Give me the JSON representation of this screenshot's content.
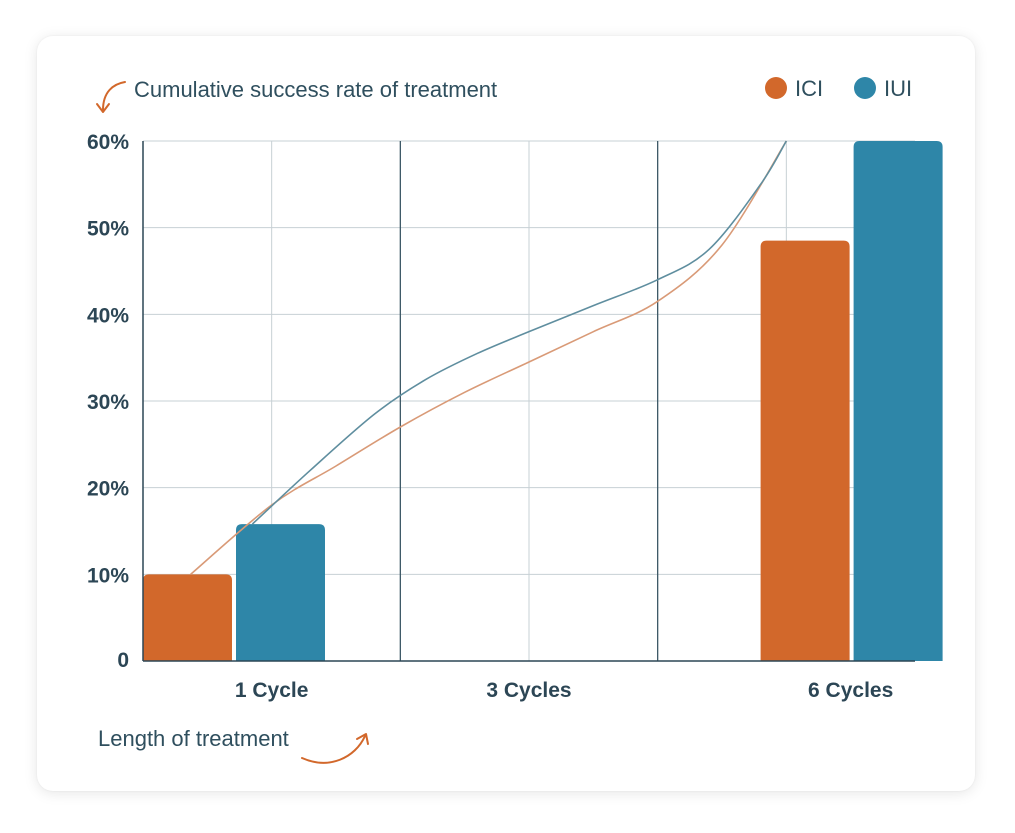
{
  "chart_data": {
    "type": "bar",
    "ylabel": "Cumulative success rate of treatment",
    "xlabel": "Length of treatment",
    "categories": [
      "1 Cycle",
      "3 Cycles",
      "6 Cycles"
    ],
    "series": [
      {
        "name": "ICI",
        "color": "#d2682b",
        "values": [
          10,
          null,
          48.5
        ]
      },
      {
        "name": "IUI",
        "color": "#2e86a8",
        "values": [
          15.8,
          null,
          60
        ]
      }
    ],
    "ylim": [
      0,
      60
    ],
    "yticks": [
      0,
      10,
      20,
      30,
      40,
      50,
      60
    ],
    "ytick_labels": [
      "0",
      "10%",
      "20%",
      "30%",
      "40%",
      "50%",
      "60%"
    ],
    "grid": true,
    "legend_position": "top-right",
    "trend_curves": [
      {
        "series": "ICI",
        "color": "#d99a77",
        "points": [
          [
            0.37,
            10
          ],
          [
            1,
            18
          ],
          [
            1.5,
            22.5
          ],
          [
            2,
            27
          ],
          [
            2.5,
            31
          ],
          [
            3,
            34.5
          ],
          [
            3.5,
            38
          ],
          [
            4,
            41.5
          ],
          [
            4.5,
            48
          ],
          [
            5,
            60
          ]
        ]
      },
      {
        "series": "IUI",
        "color": "#5f8e9f",
        "points": [
          [
            0.85,
            15.8
          ],
          [
            1.3,
            22
          ],
          [
            1.8,
            28.5
          ],
          [
            2.2,
            32.5
          ],
          [
            2.6,
            35.5
          ],
          [
            3,
            38
          ],
          [
            3.5,
            41
          ],
          [
            4,
            44
          ],
          [
            4.4,
            47.5
          ],
          [
            4.8,
            55
          ],
          [
            5,
            60
          ]
        ]
      }
    ]
  },
  "colors": {
    "axis_dark": "#2c4655",
    "grid": "#c7d0d4",
    "arrow": "#d2682b"
  }
}
